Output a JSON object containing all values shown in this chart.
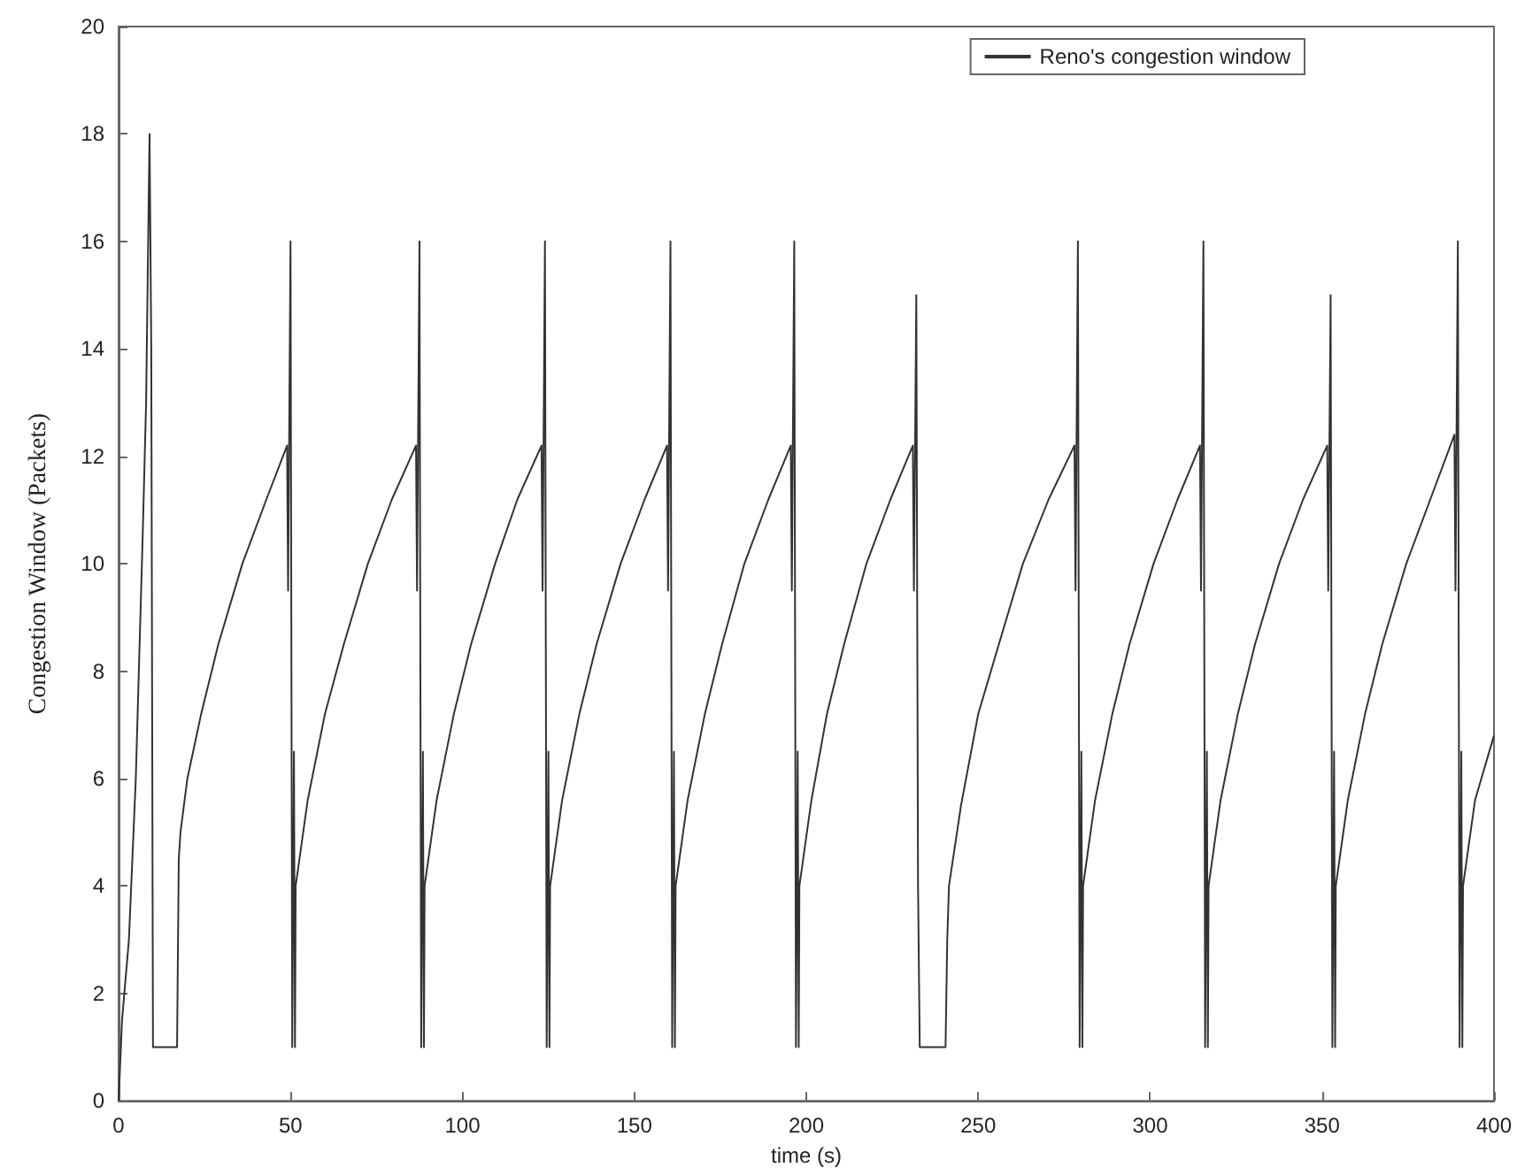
{
  "chart_data": {
    "type": "line",
    "xlabel": "time (s)",
    "ylabel": "Congestion Window (Packets)",
    "xlim": [
      0,
      400
    ],
    "xticks": [
      0,
      50,
      100,
      150,
      200,
      250,
      300,
      350,
      400
    ],
    "ylim": [
      0,
      20
    ],
    "yticks": [
      0,
      2,
      4,
      6,
      8,
      10,
      12,
      14,
      16,
      18,
      20
    ],
    "grid": false,
    "legend": "top right",
    "marker": "none",
    "line_style": "solid",
    "series": [
      {
        "name": "Reno's congestion window",
        "color": "#333333",
        "x": [
          0,
          1,
          3,
          5,
          7,
          8,
          9,
          9.5,
          10,
          17,
          17.5,
          18,
          20,
          24,
          29,
          36,
          43,
          49,
          49.3,
          50,
          50.5,
          51,
          51.3,
          51.5,
          55,
          60,
          65.5,
          72.5,
          79.5,
          86.5,
          86.8,
          87.5,
          88,
          88.5,
          88.8,
          89,
          92.5,
          97.5,
          102.5,
          109.5,
          116,
          123,
          123.3,
          124,
          124.5,
          125,
          125.3,
          125.5,
          129,
          134,
          139,
          146,
          153,
          159.5,
          159.8,
          160.5,
          161,
          161.5,
          161.8,
          162,
          165.5,
          170.5,
          175.5,
          182,
          189,
          195.5,
          195.8,
          196.5,
          197,
          197.5,
          197.8,
          198,
          201.5,
          206,
          211,
          217.5,
          224.5,
          231,
          231.3,
          232,
          232.5,
          233,
          240.5,
          241,
          241.5,
          245,
          250,
          256,
          263,
          270.5,
          278,
          278.3,
          279,
          279.5,
          280,
          280.3,
          280.5,
          284,
          289,
          294,
          301,
          308,
          314.5,
          314.8,
          315.5,
          316,
          316.5,
          316.8,
          317,
          320.5,
          325.5,
          330.5,
          337.5,
          344.5,
          351.5,
          351.8,
          352.5,
          353,
          353.5,
          353.8,
          354,
          357.5,
          362.5,
          367.5,
          374.5,
          381.5,
          388.5,
          388.8,
          389.5,
          390,
          390.5,
          390.8,
          391,
          394.5,
          400
        ],
        "values": [
          0,
          1.5,
          3,
          6,
          10.5,
          13,
          18,
          14,
          1,
          1,
          4.5,
          5,
          6,
          7.2,
          8.5,
          10,
          11.2,
          12.2,
          9.5,
          16,
          1,
          6.5,
          1,
          4,
          5.6,
          7.2,
          8.5,
          10,
          11.2,
          12.2,
          9.5,
          16,
          1,
          6.5,
          1,
          4,
          5.6,
          7.2,
          8.5,
          10,
          11.2,
          12.2,
          9.5,
          16,
          1,
          6.5,
          1,
          4,
          5.6,
          7.2,
          8.5,
          10,
          11.2,
          12.2,
          9.5,
          16,
          1,
          6.5,
          1,
          4,
          5.6,
          7.2,
          8.5,
          10,
          11.2,
          12.2,
          9.5,
          16,
          1,
          6.5,
          1,
          4,
          5.6,
          7.2,
          8.5,
          10,
          11.2,
          12.2,
          9.5,
          15,
          4,
          1,
          1,
          3,
          4,
          5.5,
          7.2,
          8.5,
          10,
          11.2,
          12.2,
          9.5,
          16,
          1,
          6.5,
          1,
          4,
          5.6,
          7.2,
          8.5,
          10,
          11.2,
          12.2,
          9.5,
          16,
          1,
          6.5,
          1,
          4,
          5.6,
          7.2,
          8.5,
          10,
          11.2,
          12.2,
          9.5,
          15,
          1,
          6.5,
          1,
          4,
          5.6,
          7.2,
          8.5,
          10,
          11.2,
          12.4,
          9.5,
          16,
          1,
          6.5,
          1,
          4,
          5.6,
          6.8
        ]
      }
    ]
  }
}
